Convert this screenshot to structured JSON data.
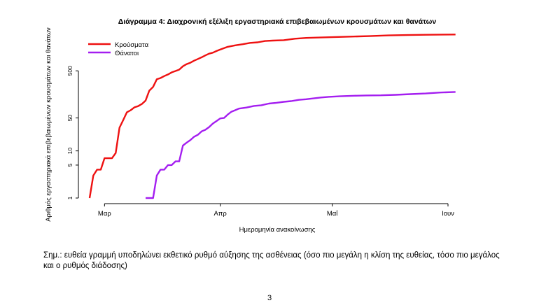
{
  "chart_data": {
    "type": "line",
    "title": "Διάγραμμα 4: Διαχρονική εξέλιξη εργαστηριακά επιβεβαιωμένων κρουσμάτων και θανάτων",
    "xlabel": "Ημερομηνία ανακοίνωσης",
    "ylabel": "Αριθμός εργαστηριακά επιβεβαιωμένων κρουσμάτων και θανάτων",
    "y_scale": "log",
    "ylim": [
      1,
      3300
    ],
    "xlim": [
      "2020-02-23",
      "2020-06-04"
    ],
    "x_ticks": [
      {
        "date": "2020-03-01",
        "label": "Μαρ"
      },
      {
        "date": "2020-04-01",
        "label": "Απρ"
      },
      {
        "date": "2020-05-01",
        "label": "Μαΐ"
      },
      {
        "date": "2020-06-01",
        "label": "Ιουν"
      }
    ],
    "y_ticks": [
      1,
      5,
      10,
      50,
      500
    ],
    "grid": false,
    "legend_position": "top-left",
    "series": [
      {
        "name": "Κρούσματα",
        "color": "#ee1111",
        "points": [
          [
            "2020-02-26",
            1
          ],
          [
            "2020-02-27",
            3
          ],
          [
            "2020-02-28",
            4
          ],
          [
            "2020-02-29",
            4
          ],
          [
            "2020-03-01",
            7
          ],
          [
            "2020-03-02",
            7
          ],
          [
            "2020-03-03",
            7
          ],
          [
            "2020-03-04",
            9
          ],
          [
            "2020-03-05",
            31
          ],
          [
            "2020-03-06",
            45
          ],
          [
            "2020-03-07",
            66
          ],
          [
            "2020-03-08",
            73
          ],
          [
            "2020-03-09",
            84
          ],
          [
            "2020-03-10",
            89
          ],
          [
            "2020-03-11",
            99
          ],
          [
            "2020-03-12",
            117
          ],
          [
            "2020-03-13",
            190
          ],
          [
            "2020-03-14",
            228
          ],
          [
            "2020-03-15",
            331
          ],
          [
            "2020-03-16",
            352
          ],
          [
            "2020-03-17",
            387
          ],
          [
            "2020-03-18",
            418
          ],
          [
            "2020-03-19",
            464
          ],
          [
            "2020-03-20",
            495
          ],
          [
            "2020-03-21",
            530
          ],
          [
            "2020-03-22",
            624
          ],
          [
            "2020-03-23",
            695
          ],
          [
            "2020-03-24",
            743
          ],
          [
            "2020-03-25",
            821
          ],
          [
            "2020-03-26",
            892
          ],
          [
            "2020-03-27",
            966
          ],
          [
            "2020-03-28",
            1061
          ],
          [
            "2020-03-29",
            1156
          ],
          [
            "2020-03-30",
            1212
          ],
          [
            "2020-03-31",
            1314
          ],
          [
            "2020-04-01",
            1415
          ],
          [
            "2020-04-03",
            1613
          ],
          [
            "2020-04-05",
            1735
          ],
          [
            "2020-04-07",
            1832
          ],
          [
            "2020-04-09",
            1955
          ],
          [
            "2020-04-11",
            2011
          ],
          [
            "2020-04-13",
            2145
          ],
          [
            "2020-04-15",
            2192
          ],
          [
            "2020-04-18",
            2235
          ],
          [
            "2020-04-21",
            2401
          ],
          [
            "2020-04-24",
            2490
          ],
          [
            "2020-04-27",
            2534
          ],
          [
            "2020-05-01",
            2591
          ],
          [
            "2020-05-06",
            2663
          ],
          [
            "2020-05-11",
            2726
          ],
          [
            "2020-05-16",
            2819
          ],
          [
            "2020-05-21",
            2873
          ],
          [
            "2020-05-26",
            2903
          ],
          [
            "2020-05-31",
            2937
          ],
          [
            "2020-06-03",
            2952
          ]
        ]
      },
      {
        "name": "Θάνατοι",
        "color": "#a41ef0",
        "points": [
          [
            "2020-03-12",
            1
          ],
          [
            "2020-03-14",
            1
          ],
          [
            "2020-03-15",
            3
          ],
          [
            "2020-03-16",
            4
          ],
          [
            "2020-03-17",
            4
          ],
          [
            "2020-03-18",
            5
          ],
          [
            "2020-03-19",
            5
          ],
          [
            "2020-03-20",
            6
          ],
          [
            "2020-03-21",
            6
          ],
          [
            "2020-03-22",
            13
          ],
          [
            "2020-03-23",
            15
          ],
          [
            "2020-03-24",
            17
          ],
          [
            "2020-03-25",
            20
          ],
          [
            "2020-03-26",
            22
          ],
          [
            "2020-03-27",
            26
          ],
          [
            "2020-03-28",
            28
          ],
          [
            "2020-03-29",
            32
          ],
          [
            "2020-03-30",
            38
          ],
          [
            "2020-03-31",
            43
          ],
          [
            "2020-04-01",
            49
          ],
          [
            "2020-04-02",
            50
          ],
          [
            "2020-04-03",
            59
          ],
          [
            "2020-04-04",
            68
          ],
          [
            "2020-04-05",
            73
          ],
          [
            "2020-04-06",
            79
          ],
          [
            "2020-04-07",
            81
          ],
          [
            "2020-04-08",
            83
          ],
          [
            "2020-04-10",
            90
          ],
          [
            "2020-04-12",
            93
          ],
          [
            "2020-04-14",
            101
          ],
          [
            "2020-04-16",
            105
          ],
          [
            "2020-04-18",
            110
          ],
          [
            "2020-04-20",
            114
          ],
          [
            "2020-04-22",
            121
          ],
          [
            "2020-04-24",
            125
          ],
          [
            "2020-04-26",
            130
          ],
          [
            "2020-04-28",
            136
          ],
          [
            "2020-04-30",
            140
          ],
          [
            "2020-05-03",
            144
          ],
          [
            "2020-05-07",
            148
          ],
          [
            "2020-05-10",
            150
          ],
          [
            "2020-05-14",
            151
          ],
          [
            "2020-05-18",
            155
          ],
          [
            "2020-05-22",
            160
          ],
          [
            "2020-05-26",
            165
          ],
          [
            "2020-05-30",
            173
          ],
          [
            "2020-06-03",
            178
          ]
        ]
      }
    ]
  },
  "note": "Σημ.: ευθεία γραμμή υποδηλώνει εκθετικό ρυθμό αύξησης της ασθένειας (όσο πιο μεγάλη η κλίση της ευθείας, τόσο πιο μεγάλος και ο ρυθμός διάδοσης)",
  "page_number": "3"
}
